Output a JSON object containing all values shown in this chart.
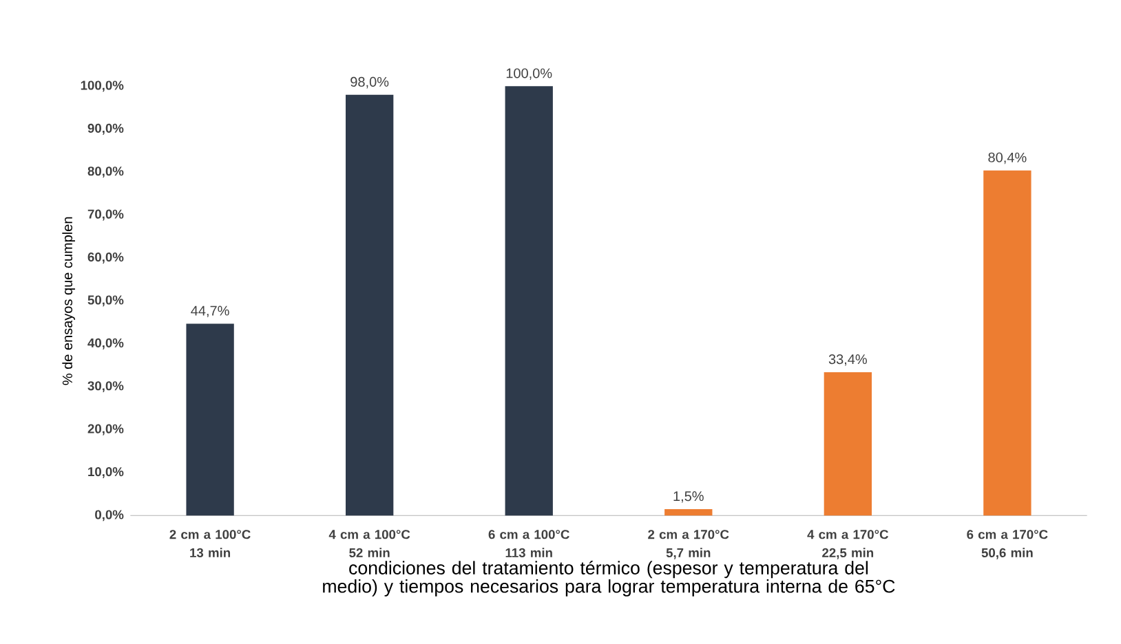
{
  "chart_data": {
    "type": "bar",
    "xlabel": "condiciones del tratamiento térmico (espesor y temperatura del medio) y tiempos necesarios para lograr temperatura interna de 65°C",
    "ylabel": "% de ensayos que cumplen",
    "categories": [
      "2 cm a 100°C 13 min",
      "4 cm a 100°C 52 min",
      "6 cm a 100°C 113 min",
      "2 cm a 170°C 5,7 min",
      "4 cm a 170°C 22,5 min",
      "6 cm a 170°C 50,6 min"
    ],
    "values": [
      44.7,
      98.0,
      100.0,
      1.5,
      33.4,
      80.4
    ],
    "value_labels": [
      "44,7%",
      "98,0%",
      "100,0%",
      "1,5%",
      "33,4%",
      "80,4%"
    ],
    "colors": [
      "#2e3a4b",
      "#2e3a4b",
      "#2e3a4b",
      "#ed7d31",
      "#ed7d31",
      "#ed7d31"
    ],
    "ylim": [
      0,
      100
    ],
    "yticks": [
      {
        "value": 0,
        "label": "0,0%"
      },
      {
        "value": 10,
        "label": "10,0%"
      },
      {
        "value": 20,
        "label": "20,0%"
      },
      {
        "value": 30,
        "label": "30,0%"
      },
      {
        "value": 40,
        "label": "40,0%"
      },
      {
        "value": 50,
        "label": "50,0%"
      },
      {
        "value": 60,
        "label": "60,0%"
      },
      {
        "value": 70,
        "label": "70,0%"
      },
      {
        "value": 80,
        "label": "80,0%"
      },
      {
        "value": 90,
        "label": "90,0%"
      },
      {
        "value": 100,
        "label": "100,0%"
      }
    ],
    "grid": false
  }
}
